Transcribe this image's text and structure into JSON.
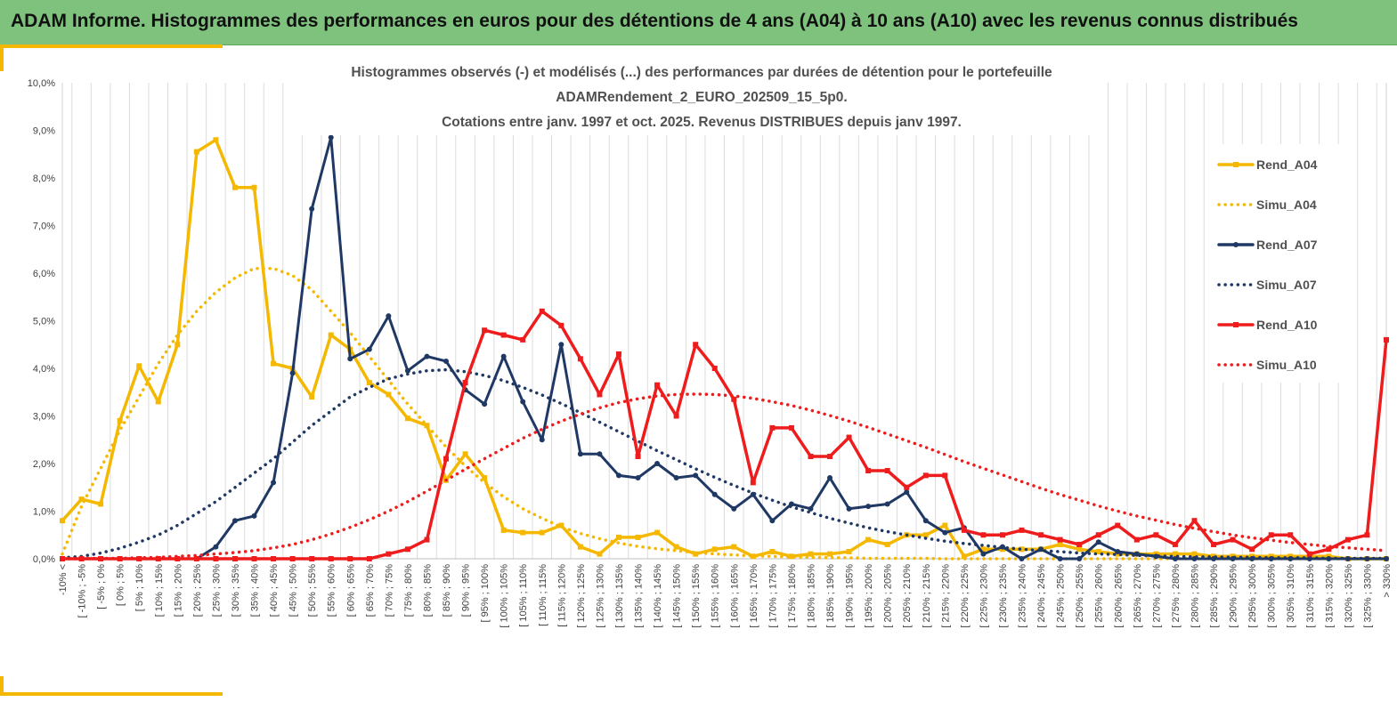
{
  "header": {
    "title": "ADAM Informe. Histogrammes des performances en euros pour des détentions de 4 ans (A04) à 10 ans (A10) avec les revenus connus distribués"
  },
  "chart_data": {
    "type": "line",
    "title_lines": [
      "Histogrammes observés (-) et modélisés (...) des performances par durées de détention pour le portefeuille",
      "ADAMRendement_2_EURO_202509_15_5p0.",
      "Cotations entre janv. 1997 et oct. 2025. Revenus DISTRIBUES depuis janv 1997."
    ],
    "xlabel": "",
    "ylabel": "",
    "ylim": [
      0,
      10
    ],
    "y_ticks": [
      "0,0%",
      "1,0%",
      "2,0%",
      "3,0%",
      "4,0%",
      "5,0%",
      "6,0%",
      "7,0%",
      "8,0%",
      "9,0%",
      "10,0%"
    ],
    "grid": "vertical",
    "legend_position": "right",
    "categories": [
      "-10% <",
      "[ -10% ; -5%",
      "[ -5% ; 0%",
      "[ 0% ; 5%",
      "[ 5% ; 10%",
      "[ 10% ; 15%",
      "[ 15% ; 20%",
      "[ 20% ; 25%",
      "[ 25% ; 30%",
      "[ 30% ; 35%",
      "[ 35% ; 40%",
      "[ 40% ; 45%",
      "[ 45% ; 50%",
      "[ 50% ; 55%",
      "[ 55% ; 60%",
      "[ 60% ; 65%",
      "[ 65% ; 70%",
      "[ 70% ; 75%",
      "[ 75% ; 80%",
      "[ 80% ; 85%",
      "[ 85% ; 90%",
      "[ 90% ; 95%",
      "[ 95% ; 100%",
      "[ 100% ; 105%",
      "[ 105% ; 110%",
      "[ 110% ; 115%",
      "[ 115% ; 120%",
      "[ 120% ; 125%",
      "[ 125% ; 130%",
      "[ 130% ; 135%",
      "[ 135% ; 140%",
      "[ 140% ; 145%",
      "[ 145% ; 150%",
      "[ 150% ; 155%",
      "[ 155% ; 160%",
      "[ 160% ; 165%",
      "[ 165% ; 170%",
      "[ 170% ; 175%",
      "[ 175% ; 180%",
      "[ 180% ; 185%",
      "[ 185% ; 190%",
      "[ 190% ; 195%",
      "[ 195% ; 200%",
      "[ 200% ; 205%",
      "[ 205% ; 210%",
      "[ 210% ; 215%",
      "[ 215% ; 220%",
      "[ 220% ; 225%",
      "[ 225% ; 230%",
      "[ 230% ; 235%",
      "[ 235% ; 240%",
      "[ 240% ; 245%",
      "[ 245% ; 250%",
      "[ 250% ; 255%",
      "[ 255% ; 260%",
      "[ 260% ; 265%",
      "[ 265% ; 270%",
      "[ 270% ; 275%",
      "[ 275% ; 280%",
      "[ 280% ; 285%",
      "[ 285% ; 290%",
      "[ 290% ; 295%",
      "[ 295% ; 300%",
      "[ 300% ; 305%",
      "[ 305% ; 310%",
      "[ 310% ; 315%",
      "[ 315% ; 320%",
      "[ 320% ; 325%",
      "[ 325% ; 330%",
      "> 330%"
    ],
    "series": [
      {
        "name": "Rend_A04",
        "color": "#f5b800",
        "style": "solid",
        "marker": "square",
        "values": [
          0.8,
          1.25,
          1.15,
          2.9,
          4.05,
          3.3,
          4.5,
          8.55,
          8.8,
          7.8,
          7.8,
          4.1,
          4.0,
          3.4,
          4.7,
          4.4,
          3.7,
          3.45,
          2.95,
          2.8,
          1.65,
          2.2,
          1.7,
          0.6,
          0.55,
          0.55,
          0.7,
          0.25,
          0.1,
          0.45,
          0.45,
          0.55,
          0.25,
          0.1,
          0.2,
          0.25,
          0.05,
          0.15,
          0.05,
          0.1,
          0.1,
          0.15,
          0.4,
          0.3,
          0.5,
          0.5,
          0.7,
          0.05,
          0.2,
          0.2,
          0.2,
          0.2,
          0.3,
          0.2,
          0.15,
          0.1,
          0.1,
          0.1,
          0.1,
          0.1,
          0.05,
          0.05,
          0.05,
          0.05,
          0.05,
          0.05,
          0.05,
          0.0,
          0.0,
          0.0
        ]
      },
      {
        "name": "Simu_A04",
        "color": "#f5b800",
        "style": "dotted",
        "marker": "none",
        "values": [
          0.1,
          1.1,
          1.9,
          2.7,
          3.4,
          4.1,
          4.7,
          5.2,
          5.6,
          5.9,
          6.1,
          6.1,
          5.95,
          5.65,
          5.2,
          4.75,
          4.25,
          3.75,
          3.25,
          2.8,
          2.35,
          1.95,
          1.6,
          1.3,
          1.05,
          0.85,
          0.67,
          0.53,
          0.42,
          0.33,
          0.26,
          0.21,
          0.17,
          0.13,
          0.1,
          0.08,
          0.06,
          0.05,
          0.04,
          0.03,
          0.02,
          0.02,
          0.01,
          0.01,
          0.01,
          0.01,
          0.0,
          0.0,
          0.0,
          0.0,
          0.0,
          0.0,
          0.0,
          0.0,
          0.0,
          0.0,
          0.0,
          0.0,
          0.0,
          0.0,
          0.0,
          0.0,
          0.0,
          0.0,
          0.0,
          0.0,
          0.0,
          0.0,
          0.0,
          0.0
        ]
      },
      {
        "name": "Rend_A07",
        "color": "#1f3864",
        "style": "solid",
        "marker": "circle",
        "values": [
          0,
          0,
          0,
          0,
          0,
          0,
          0,
          0,
          0.25,
          0.8,
          0.9,
          1.6,
          3.9,
          7.35,
          8.85,
          4.2,
          4.4,
          5.1,
          3.95,
          4.25,
          4.15,
          3.55,
          3.25,
          4.25,
          3.3,
          2.5,
          4.5,
          2.2,
          2.2,
          1.75,
          1.7,
          2.0,
          1.7,
          1.75,
          1.35,
          1.05,
          1.35,
          0.8,
          1.15,
          1.05,
          1.7,
          1.05,
          1.1,
          1.15,
          1.4,
          0.8,
          0.55,
          0.65,
          0.1,
          0.25,
          0.0,
          0.2,
          0.0,
          0.0,
          0.35,
          0.15,
          0.1,
          0.05,
          0.0,
          0.0,
          0.0,
          0.0,
          0.0,
          0.0,
          0.0,
          0.0,
          0.0,
          0.0,
          0.0,
          0.0
        ]
      },
      {
        "name": "Simu_A07",
        "color": "#1f3864",
        "style": "dotted",
        "marker": "none",
        "values": [
          0.02,
          0.05,
          0.12,
          0.22,
          0.35,
          0.5,
          0.7,
          0.95,
          1.2,
          1.5,
          1.8,
          2.1,
          2.45,
          2.8,
          3.1,
          3.4,
          3.6,
          3.78,
          3.88,
          3.95,
          3.97,
          3.93,
          3.85,
          3.74,
          3.6,
          3.44,
          3.26,
          3.07,
          2.87,
          2.67,
          2.47,
          2.27,
          2.08,
          1.89,
          1.71,
          1.54,
          1.38,
          1.23,
          1.09,
          0.97,
          0.85,
          0.75,
          0.65,
          0.57,
          0.5,
          0.43,
          0.37,
          0.32,
          0.28,
          0.24,
          0.2,
          0.17,
          0.15,
          0.12,
          0.1,
          0.09,
          0.07,
          0.06,
          0.05,
          0.04,
          0.04,
          0.03,
          0.03,
          0.02,
          0.02,
          0.02,
          0.01,
          0.01,
          0.01,
          0.01
        ]
      },
      {
        "name": "Rend_A10",
        "color": "#ee1c1c",
        "style": "solid",
        "marker": "square",
        "values": [
          0,
          0,
          0,
          0,
          0,
          0,
          0,
          0,
          0,
          0,
          0,
          0,
          0,
          0,
          0,
          0,
          0,
          0.1,
          0.2,
          0.4,
          2.1,
          3.7,
          4.8,
          4.7,
          4.6,
          5.2,
          4.9,
          4.2,
          3.45,
          4.3,
          2.15,
          3.65,
          3.0,
          4.5,
          4.0,
          3.35,
          1.6,
          2.75,
          2.75,
          2.15,
          2.15,
          2.55,
          1.85,
          1.85,
          1.5,
          1.75,
          1.75,
          0.6,
          0.5,
          0.5,
          0.6,
          0.5,
          0.4,
          0.3,
          0.5,
          0.7,
          0.4,
          0.5,
          0.3,
          0.8,
          0.3,
          0.4,
          0.2,
          0.5,
          0.5,
          0.1,
          0.2,
          0.4,
          0.5,
          4.6
        ]
      },
      {
        "name": "Simu_A10",
        "color": "#ee1c1c",
        "style": "dotted",
        "marker": "none",
        "values": [
          0.0,
          0.0,
          0.01,
          0.01,
          0.02,
          0.03,
          0.05,
          0.07,
          0.1,
          0.13,
          0.17,
          0.23,
          0.3,
          0.4,
          0.52,
          0.66,
          0.82,
          1.0,
          1.2,
          1.42,
          1.65,
          1.88,
          2.1,
          2.32,
          2.53,
          2.72,
          2.89,
          3.04,
          3.17,
          3.28,
          3.36,
          3.42,
          3.45,
          3.46,
          3.45,
          3.42,
          3.37,
          3.3,
          3.22,
          3.12,
          3.01,
          2.89,
          2.76,
          2.62,
          2.48,
          2.34,
          2.19,
          2.04,
          1.9,
          1.76,
          1.62,
          1.48,
          1.35,
          1.23,
          1.11,
          1.0,
          0.9,
          0.81,
          0.72,
          0.64,
          0.57,
          0.5,
          0.44,
          0.39,
          0.34,
          0.3,
          0.26,
          0.23,
          0.2,
          0.17
        ]
      }
    ]
  }
}
